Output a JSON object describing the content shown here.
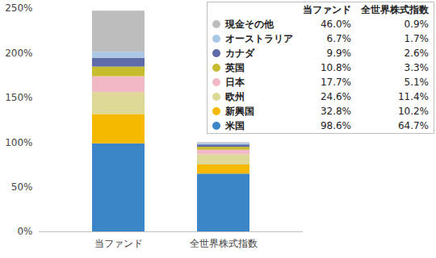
{
  "chart_data": {
    "type": "bar",
    "stacked": true,
    "categories": [
      "当ファンド",
      "全世界株式指数"
    ],
    "series": [
      {
        "name": "米国",
        "color": "#3a86c8",
        "values": [
          98.6,
          64.7
        ],
        "value_labels": [
          "98.6%",
          "64.7%"
        ]
      },
      {
        "name": "新興国",
        "color": "#f7b900",
        "values": [
          32.8,
          10.2
        ],
        "value_labels": [
          "32.8%",
          "10.2%"
        ]
      },
      {
        "name": "欧州",
        "color": "#ddd896",
        "values": [
          24.6,
          11.4
        ],
        "value_labels": [
          "24.6%",
          "11.4%"
        ]
      },
      {
        "name": "日本",
        "color": "#f2b8c6",
        "values": [
          17.7,
          5.1
        ],
        "value_labels": [
          "17.7%",
          "5.1%"
        ]
      },
      {
        "name": "英国",
        "color": "#c7bb2e",
        "values": [
          10.8,
          3.3
        ],
        "value_labels": [
          "10.8%",
          "3.3%"
        ]
      },
      {
        "name": "カナダ",
        "color": "#5f6aa8",
        "values": [
          9.9,
          2.6
        ],
        "value_labels": [
          "9.9%",
          "2.6%"
        ]
      },
      {
        "name": "オーストラリア",
        "color": "#aac8e6",
        "values": [
          6.7,
          1.7
        ],
        "value_labels": [
          "6.7%",
          "1.7%"
        ]
      },
      {
        "name": "現金その他",
        "color": "#bdbdbd",
        "values": [
          46.0,
          0.9
        ],
        "value_labels": [
          "46.0%",
          "0.9%"
        ]
      }
    ],
    "ylim": [
      0,
      250
    ],
    "yticks": [
      {
        "value": 0,
        "label": "0%"
      },
      {
        "value": 50,
        "label": "50%"
      },
      {
        "value": 100,
        "label": "100%"
      },
      {
        "value": 150,
        "label": "150%"
      },
      {
        "value": 200,
        "label": "200%"
      },
      {
        "value": 250,
        "label": "250%"
      }
    ],
    "grid": false,
    "legend": "upper right"
  }
}
